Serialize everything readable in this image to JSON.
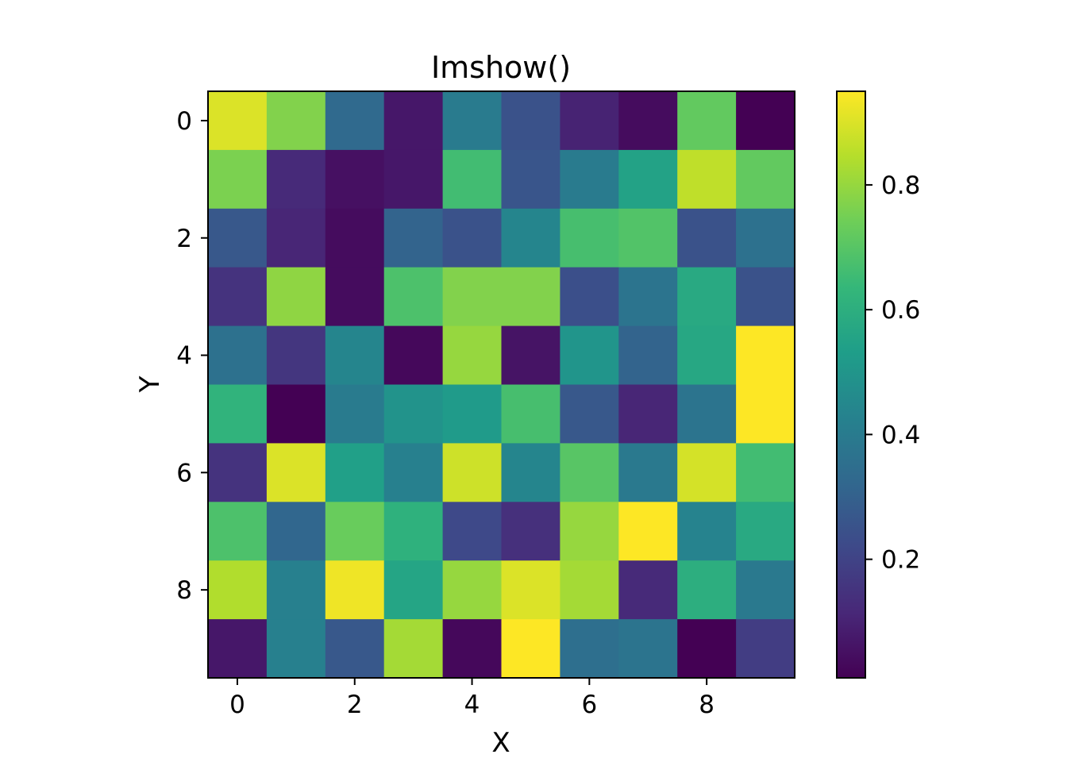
{
  "chart_data": {
    "type": "heatmap",
    "title": "Imshow()",
    "xlabel": "X",
    "ylabel": "Y",
    "x_ticks": [
      0,
      2,
      4,
      6,
      8
    ],
    "y_ticks": [
      0,
      2,
      4,
      6,
      8
    ],
    "x_range": [
      -0.5,
      9.5
    ],
    "y_range": [
      -0.5,
      9.5
    ],
    "colormap": "viridis",
    "color_range": [
      0.01,
      0.95
    ],
    "colorbar_ticks": [
      0.2,
      0.4,
      0.6,
      0.8
    ],
    "colorbar_tick_labels": [
      "0.2",
      "0.4",
      "0.6",
      "0.8"
    ],
    "grid": false,
    "values": [
      [
        0.9,
        0.77,
        0.33,
        0.07,
        0.4,
        0.25,
        0.1,
        0.04,
        0.72,
        0.01
      ],
      [
        0.76,
        0.12,
        0.05,
        0.07,
        0.66,
        0.26,
        0.4,
        0.55,
        0.86,
        0.72
      ],
      [
        0.27,
        0.11,
        0.04,
        0.31,
        0.25,
        0.44,
        0.67,
        0.69,
        0.25,
        0.36
      ],
      [
        0.15,
        0.79,
        0.04,
        0.68,
        0.77,
        0.77,
        0.24,
        0.37,
        0.58,
        0.25
      ],
      [
        0.36,
        0.16,
        0.44,
        0.03,
        0.8,
        0.06,
        0.5,
        0.31,
        0.57,
        0.95
      ],
      [
        0.62,
        0.01,
        0.4,
        0.49,
        0.52,
        0.67,
        0.27,
        0.11,
        0.37,
        0.95
      ],
      [
        0.15,
        0.9,
        0.54,
        0.42,
        0.88,
        0.44,
        0.7,
        0.39,
        0.89,
        0.66
      ],
      [
        0.68,
        0.32,
        0.73,
        0.61,
        0.22,
        0.14,
        0.8,
        0.95,
        0.43,
        0.58
      ],
      [
        0.84,
        0.42,
        0.93,
        0.56,
        0.8,
        0.9,
        0.82,
        0.12,
        0.6,
        0.39
      ],
      [
        0.07,
        0.42,
        0.27,
        0.82,
        0.03,
        0.95,
        0.35,
        0.37,
        0.01,
        0.18
      ]
    ]
  }
}
